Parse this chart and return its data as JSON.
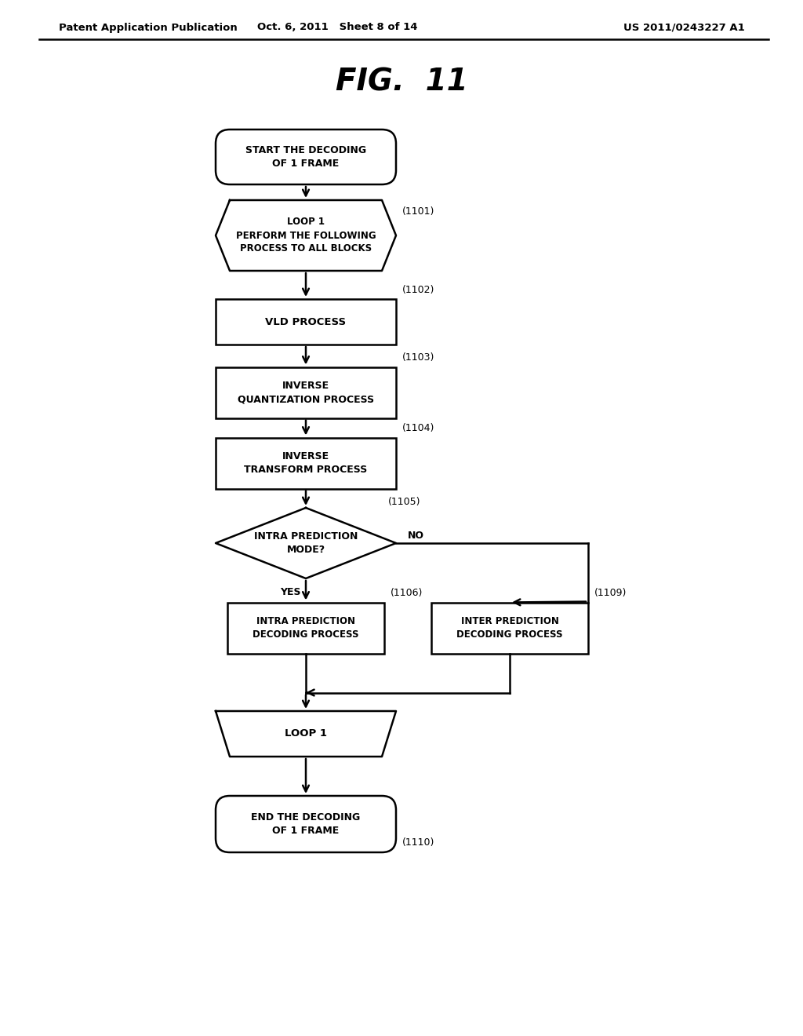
{
  "title": "FIG.  11",
  "header_left": "Patent Application Publication",
  "header_mid": "Oct. 6, 2011   Sheet 8 of 14",
  "header_right": "US 2011/0243227 A1",
  "bg_color": "#ffffff",
  "line_color": "#000000",
  "text_color": "#000000",
  "start_text": "START THE DECODING\nOF 1 FRAME",
  "loop1_top_text": "LOOP 1\nPERFORM THE FOLLOWING\nPROCESS TO ALL BLOCKS",
  "vld_text": "VLD PROCESS",
  "inv_quant_text": "INVERSE\nQUANTIZATION PROCESS",
  "inv_transform_text": "INVERSE\nTRANSFORM PROCESS",
  "diamond_text": "INTRA PREDICTION\nMODE?",
  "intra_text": "INTRA PREDICTION\nDECODING PROCESS",
  "inter_text": "INTER PREDICTION\nDECODING PROCESS",
  "loop1_bot_text": "LOOP 1",
  "end_text": "END THE DECODING\nOF 1 FRAME",
  "label_1101": "(1101)",
  "label_1102": "(1102)",
  "label_1103": "(1103)",
  "label_1104": "(1104)",
  "label_1105": "(1105)",
  "label_1106": "(1106)",
  "label_1109": "(1109)",
  "label_1110": "(1110)",
  "yes_text": "YES",
  "no_text": "NO"
}
